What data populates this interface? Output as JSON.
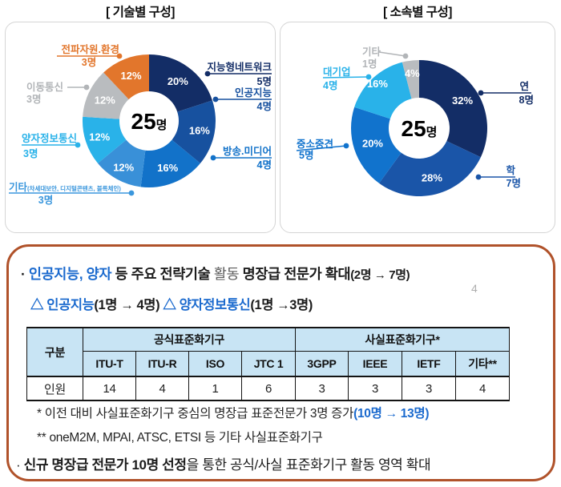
{
  "page_number": "4",
  "colors": {
    "accent_blue": "#1b6ace",
    "box_border": "#b0522a",
    "table_header_bg": "#c8e4f4",
    "panel_border": "#d5d5d5"
  },
  "chart_data": [
    {
      "type": "pie",
      "variant": "donut",
      "title": "[ 기술별 구성]",
      "center_value": "25",
      "center_unit": "명",
      "total": 25,
      "slices": [
        {
          "label": "지능형네트워크",
          "count": "5명",
          "value": 5,
          "pct": 20,
          "color": "#132d66"
        },
        {
          "label": "인공지능",
          "count": "4명",
          "value": 4,
          "pct": 16,
          "color": "#17519f"
        },
        {
          "label": "방송.미디어",
          "count": "4명",
          "value": 4,
          "pct": 16,
          "color": "#1272c9"
        },
        {
          "label": "기타",
          "label_detail": "(차세대보안, 디지털콘텐츠, 블록체인)",
          "count": "3명",
          "value": 3,
          "pct": 12,
          "color": "#3990d8",
          "label_color": "#3b97dd"
        },
        {
          "label": "양자정보통신",
          "count": "3명",
          "value": 3,
          "pct": 12,
          "color": "#29b2e9"
        },
        {
          "label": "이동통신",
          "count": "3명",
          "value": 3,
          "pct": 12,
          "color": "#b9bcbf",
          "label_color": "#b2b5b8"
        },
        {
          "label": "전파자원.환경",
          "count": "3명",
          "value": 3,
          "pct": 12,
          "color": "#e2762c"
        }
      ]
    },
    {
      "type": "pie",
      "variant": "donut",
      "title": "[ 소속별 구성]",
      "center_value": "25",
      "center_unit": "명",
      "total": 25,
      "slices": [
        {
          "label": "연",
          "count": "8명",
          "value": 8,
          "pct": 32,
          "color": "#132d66"
        },
        {
          "label": "학",
          "count": "7명",
          "value": 7,
          "pct": 28,
          "color": "#1a55a8"
        },
        {
          "label": "중소중견",
          "count": "5명",
          "value": 5,
          "pct": 20,
          "color": "#1173cd"
        },
        {
          "label": "대기업",
          "count": "4명",
          "value": 4,
          "pct": 16,
          "color": "#29b2e9"
        },
        {
          "label": "기타",
          "count": "1명",
          "value": 1,
          "pct": 4,
          "color": "#b9bcbf",
          "label_color": "#b2b5b8"
        }
      ]
    },
    {
      "type": "table",
      "corner_label": "구분",
      "groups": [
        {
          "label": "공식표준화기구",
          "cols": [
            "ITU-T",
            "ITU-R",
            "ISO",
            "JTC 1"
          ]
        },
        {
          "label": "사실표준화기구*",
          "cols": [
            "3GPP",
            "IEEE",
            "IETF",
            "기타**"
          ]
        }
      ],
      "row_label": "인원",
      "values": [
        "14",
        "4",
        "1",
        "6",
        "3",
        "3",
        "3",
        "4"
      ]
    }
  ],
  "summary": {
    "bullet": "·",
    "line1_blue": " 인공지능, 양자",
    "line1_dark": " 등 주요 전략기술 ",
    "line1_gray": "활동",
    "line1_bold": "  명장급 전문가 확대",
    "line1_paren": "(2명 → 7명)",
    "line2_blue1": "△ 인공지능",
    "line2_dark1": "(1명 → 4명)",
    "line2_blue2": " △ 양자정보통신",
    "line2_dark2": "(1명 →3명)"
  },
  "notes": {
    "note1": "* 이전 대비 사실표준화기구 중심의 명장급 표준전문가 3명 증가",
    "note1_highlight": "(10명 → 13명)",
    "note2": "** oneM2M, MPAI, ATSC, ETSI 등 기타 사실표준화기구",
    "bullet2_prefix": "· ",
    "bullet2_bold": "신규 명장급 전문가 10명 선정",
    "bullet2_rest": "을 통한 공식/사실 표준화기구 활동 영역 확대"
  }
}
